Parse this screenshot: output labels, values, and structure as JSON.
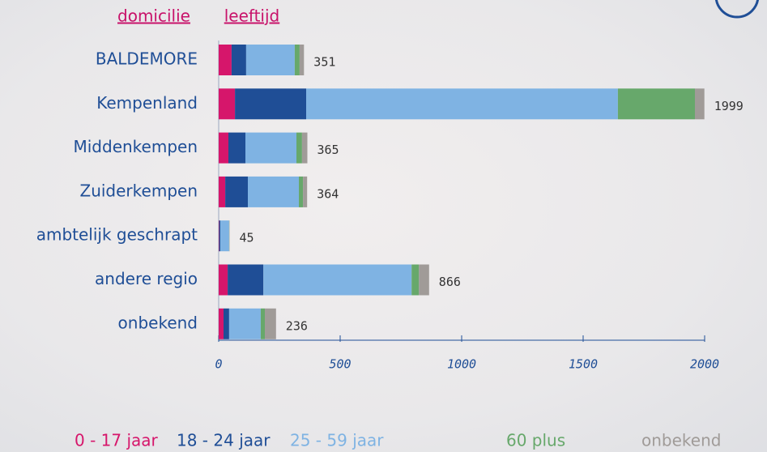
{
  "tabs": [
    "domicilie",
    "leeftijd"
  ],
  "chart_data": {
    "type": "bar",
    "orientation": "horizontal",
    "stacked": true,
    "categories": [
      "BALDEMORE",
      "Kempenland",
      "Middenkempen",
      "Zuiderkempen",
      "ambtelijk geschrapt",
      "andere regio",
      "onbekend"
    ],
    "series": [
      {
        "name": "0 - 17 jaar",
        "color": "#d6166b",
        "values": [
          53,
          67,
          40,
          27,
          2,
          37,
          20
        ]
      },
      {
        "name": "18 - 24 jaar",
        "color": "#1f4e96",
        "values": [
          60,
          293,
          70,
          93,
          5,
          147,
          23
        ]
      },
      {
        "name": "25 - 59 jaar",
        "color": "#7fb3e3",
        "values": [
          200,
          1283,
          210,
          210,
          36,
          610,
          130
        ]
      },
      {
        "name": "60 plus",
        "color": "#67a86b",
        "values": [
          20,
          317,
          23,
          17,
          1,
          30,
          17
        ]
      },
      {
        "name": "onbekend",
        "color": "#a09b98",
        "values": [
          18,
          39,
          22,
          17,
          1,
          42,
          46
        ]
      }
    ],
    "totals": [
      351,
      1999,
      365,
      364,
      45,
      866,
      236
    ],
    "xlim": [
      0,
      2000
    ],
    "xticks": [
      0,
      500,
      1000,
      1500,
      2000
    ]
  }
}
